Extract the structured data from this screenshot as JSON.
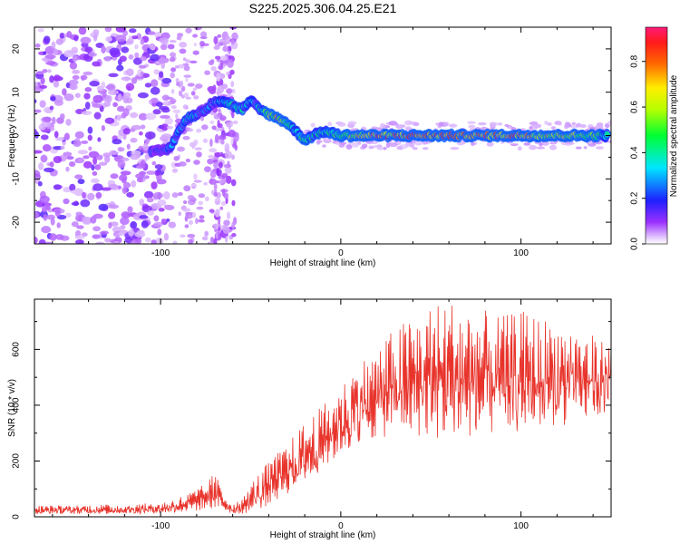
{
  "title": "S225.2025.306.04.25.E21",
  "chart_data": [
    {
      "type": "heatmap",
      "xlabel": "Height of straight line (km)",
      "ylabel": "Frequency (Hz)",
      "xlim": [
        -170,
        150
      ],
      "ylim": [
        -25,
        25
      ],
      "xticks": [
        -100,
        0,
        100
      ],
      "xtick_labels": [
        "-100",
        "0",
        "100"
      ],
      "yticks": [
        -20,
        -10,
        0,
        10,
        20
      ],
      "ytick_labels": [
        "-20",
        "-10",
        "0",
        "10",
        "20"
      ],
      "ridge": {
        "x": [
          -105,
          -95,
          -90,
          -85,
          -80,
          -75,
          -70,
          -65,
          -60,
          -55,
          -50,
          -45,
          -40,
          -35,
          -30,
          -25,
          -20,
          -15,
          -10,
          -5,
          0,
          20,
          40,
          60,
          80,
          100,
          120,
          140,
          148
        ],
        "y": [
          -4,
          -3,
          1,
          4,
          5,
          6,
          8,
          8,
          7,
          6,
          8,
          6,
          5,
          4,
          3,
          1,
          -1,
          0,
          1,
          0.5,
          0,
          0,
          0,
          0,
          0,
          0,
          0,
          0,
          0
        ],
        "amplitude": [
          0.25,
          0.3,
          0.35,
          0.4,
          0.35,
          0.3,
          0.3,
          0.35,
          0.4,
          0.4,
          0.35,
          0.4,
          0.6,
          0.8,
          0.45,
          0.4,
          0.5,
          0.45,
          0.45,
          0.5,
          0.6,
          0.85,
          0.85,
          0.85,
          0.85,
          0.85,
          0.7,
          0.6,
          0.45
        ]
      },
      "colorbar": {
        "label": "Normalized spectral amplitude",
        "range": [
          0,
          0.95
        ],
        "ticks": [
          0.0,
          0.2,
          0.4,
          0.6,
          0.8
        ],
        "tick_labels": [
          "0.0",
          "0.2",
          "0.4",
          "0.6",
          "0.8"
        ]
      }
    },
    {
      "type": "line",
      "xlabel": "Height of straight line (km)",
      "ylabel": "SNR (10 * v/v)",
      "xlim": [
        -170,
        150
      ],
      "ylim": [
        0,
        780
      ],
      "xticks": [
        -100,
        0,
        100
      ],
      "xtick_labels": [
        "-100",
        "0",
        "100"
      ],
      "yticks": [
        0,
        200,
        400,
        600
      ],
      "ytick_labels": [
        "0",
        "200",
        "400",
        "600"
      ],
      "color": "#e8332b",
      "envelope": {
        "x": [
          -170,
          -120,
          -100,
          -90,
          -80,
          -75,
          -70,
          -65,
          -60,
          -55,
          -50,
          -40,
          -30,
          -20,
          -10,
          0,
          10,
          20,
          30,
          40,
          50,
          60,
          70,
          80,
          90,
          100,
          120,
          140,
          150
        ],
        "low": [
          10,
          10,
          12,
          15,
          20,
          25,
          30,
          20,
          10,
          10,
          15,
          40,
          80,
          120,
          170,
          220,
          260,
          280,
          290,
          290,
          280,
          270,
          280,
          280,
          300,
          300,
          320,
          350,
          380
        ],
        "high": [
          40,
          45,
          50,
          70,
          100,
          120,
          160,
          90,
          50,
          60,
          120,
          200,
          260,
          340,
          400,
          470,
          560,
          600,
          680,
          720,
          760,
          780,
          760,
          740,
          720,
          740,
          700,
          650,
          620
        ]
      }
    }
  ]
}
